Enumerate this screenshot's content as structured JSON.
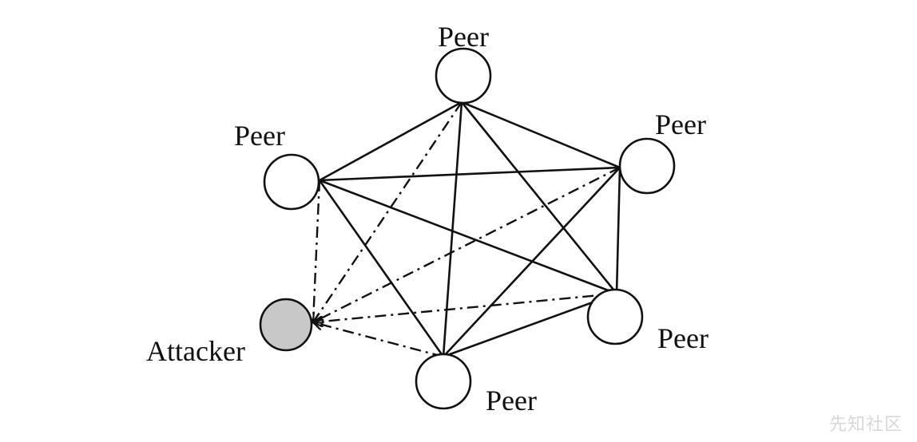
{
  "diagram": {
    "nodes": [
      {
        "id": "peer-top",
        "label": "Peer",
        "kind": "peer"
      },
      {
        "id": "peer-upper-left",
        "label": "Peer",
        "kind": "peer"
      },
      {
        "id": "peer-upper-right",
        "label": "Peer",
        "kind": "peer"
      },
      {
        "id": "peer-lower-right",
        "label": "Peer",
        "kind": "peer"
      },
      {
        "id": "peer-bottom",
        "label": "Peer",
        "kind": "peer"
      },
      {
        "id": "attacker",
        "label": "Attacker",
        "kind": "attacker"
      }
    ],
    "edges": [
      {
        "from": "peer-top",
        "to": "peer-upper-left",
        "style": "solid"
      },
      {
        "from": "peer-top",
        "to": "peer-upper-right",
        "style": "solid"
      },
      {
        "from": "peer-top",
        "to": "peer-lower-right",
        "style": "solid"
      },
      {
        "from": "peer-top",
        "to": "peer-bottom",
        "style": "solid"
      },
      {
        "from": "peer-upper-left",
        "to": "peer-upper-right",
        "style": "solid"
      },
      {
        "from": "peer-upper-left",
        "to": "peer-lower-right",
        "style": "solid"
      },
      {
        "from": "peer-upper-left",
        "to": "peer-bottom",
        "style": "solid"
      },
      {
        "from": "peer-upper-right",
        "to": "peer-lower-right",
        "style": "solid"
      },
      {
        "from": "peer-upper-right",
        "to": "peer-bottom",
        "style": "solid"
      },
      {
        "from": "peer-lower-right",
        "to": "peer-bottom",
        "style": "solid"
      },
      {
        "from": "peer-top",
        "to": "attacker",
        "style": "dash-dot",
        "arrow": true
      },
      {
        "from": "peer-upper-left",
        "to": "attacker",
        "style": "dash-dot",
        "arrow": true
      },
      {
        "from": "peer-upper-right",
        "to": "attacker",
        "style": "dash-dot",
        "arrow": true
      },
      {
        "from": "peer-lower-right",
        "to": "attacker",
        "style": "dash-dot",
        "arrow": true
      },
      {
        "from": "peer-bottom",
        "to": "attacker",
        "style": "dash-dot",
        "arrow": true
      }
    ],
    "colors": {
      "line": "#111111",
      "peer_fill": "#ffffff",
      "attacker_fill": "#c8c8c8"
    }
  },
  "watermark": "先知社区"
}
